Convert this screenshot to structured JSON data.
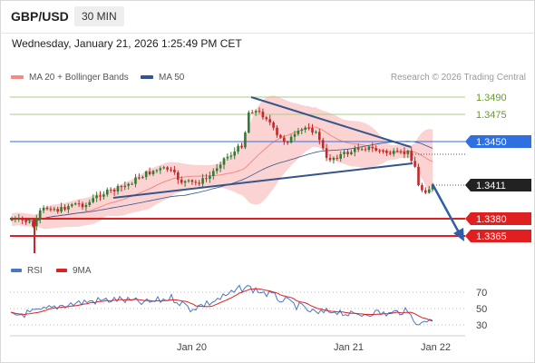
{
  "header": {
    "symbol": "GBP/USD",
    "timeframe": "30 MIN",
    "datetime": "Wednesday, January 21, 2026 1:25:49 PM CET"
  },
  "legend": {
    "items": [
      {
        "label": "MA 20 + Bollinger Bands",
        "color": "#f28b82"
      },
      {
        "label": "MA 50",
        "color": "#34558b"
      }
    ],
    "credit": "Research © 2026 Trading Central"
  },
  "price_levels": [
    {
      "label": "1.3490",
      "kind": "resistance-green",
      "color": "#6a9a2e"
    },
    {
      "label": "1.3475",
      "kind": "resistance-green",
      "color": "#6a9a2e"
    },
    {
      "label": "1.3450",
      "kind": "pivot",
      "color": "#2f6fe0"
    },
    {
      "label": "1.3411",
      "kind": "last-price",
      "color": "#222222"
    },
    {
      "label": "1.3380",
      "kind": "support",
      "color": "#e02020"
    },
    {
      "label": "1.3365",
      "kind": "support",
      "color": "#e02020"
    }
  ],
  "rsi_legend": {
    "items": [
      {
        "label": "RSI",
        "color": "#4a76c9"
      },
      {
        "label": "9MA",
        "color": "#e02020"
      }
    ]
  },
  "rsi_ticks": [
    "70",
    "50",
    "30"
  ],
  "x_axis": {
    "labels": [
      "Jan 20",
      "Jan 21",
      "Jan 22"
    ]
  },
  "colors": {
    "up_candle": "#2e7d32",
    "down_candle": "#c62828",
    "bollinger_fill": "#fbd3d3",
    "ma20": "#f28b82",
    "ma50": "#34558b",
    "pattern_line": "#34558b",
    "arrow": "#2e5ea8"
  }
}
